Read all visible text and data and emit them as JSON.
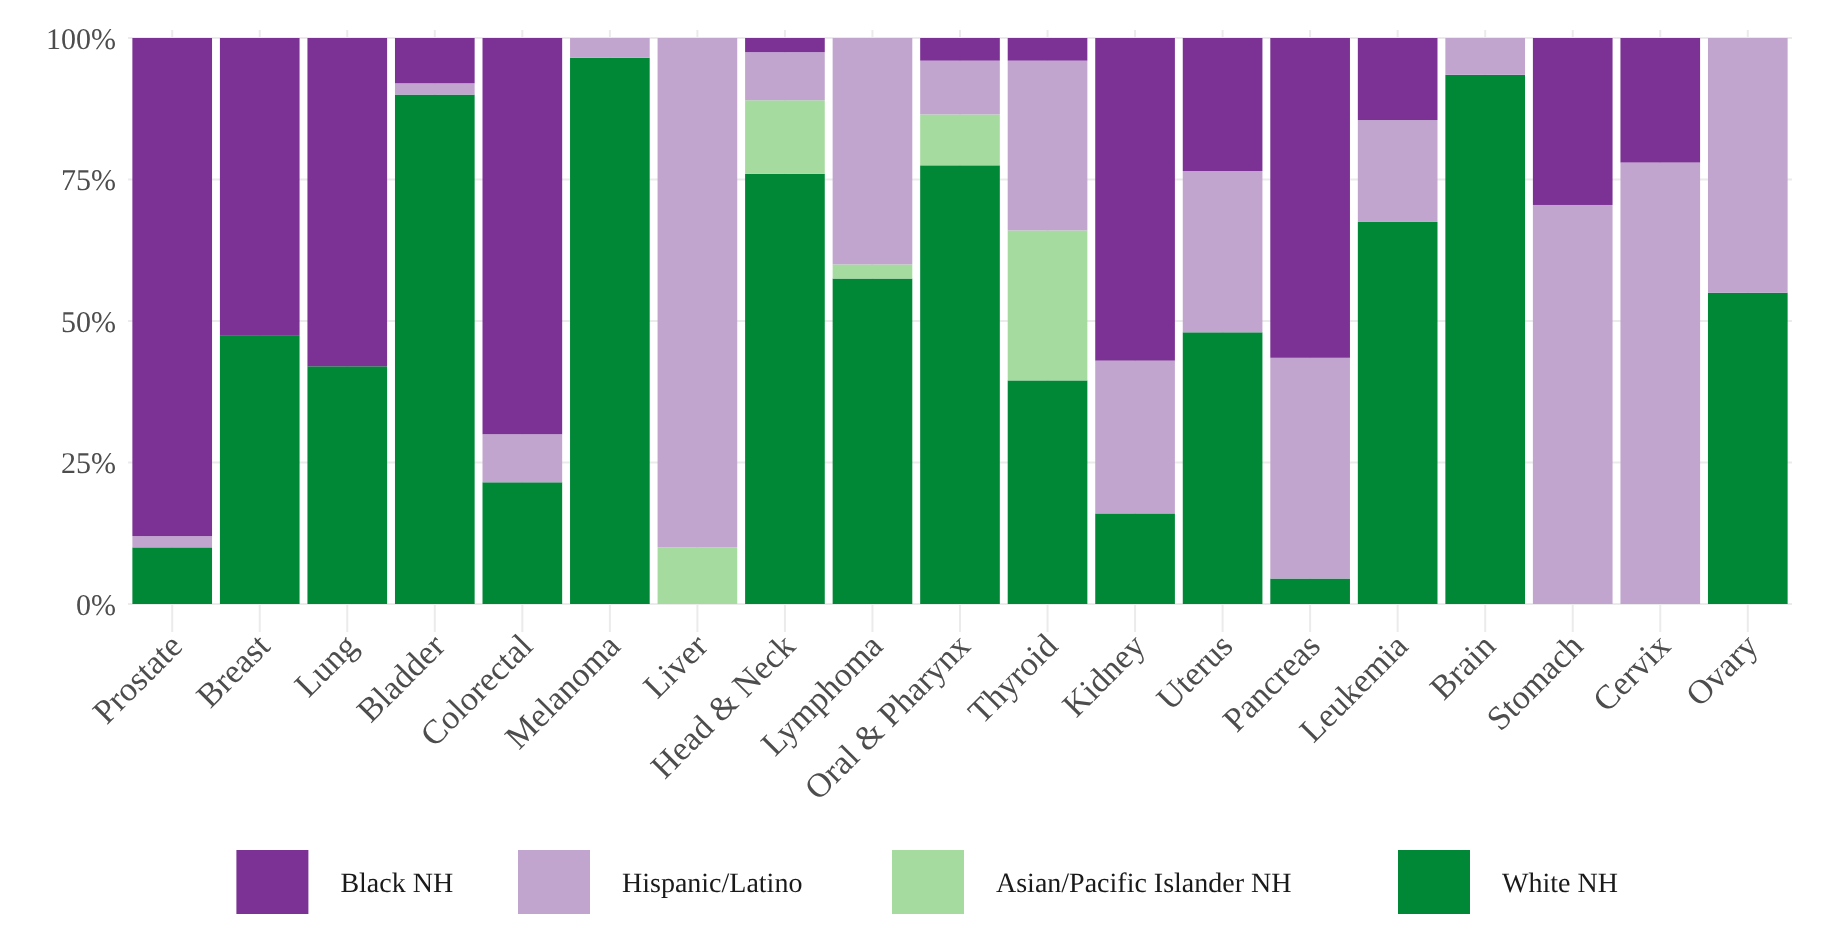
{
  "chart_data": {
    "type": "bar",
    "stacked": true,
    "categories": [
      "Prostate",
      "Breast",
      "Lung",
      "Bladder",
      "Colorectal",
      "Melanoma",
      "Liver",
      "Head & Neck",
      "Lymphoma",
      "Oral & Pharynx",
      "Thyroid",
      "Kidney",
      "Uterus",
      "Pancreas",
      "Leukemia",
      "Brain",
      "Stomach",
      "Cervix",
      "Ovary"
    ],
    "series": [
      {
        "name": "White NH",
        "color": "#008837",
        "values": [
          10,
          47.5,
          42,
          90,
          21.5,
          96.5,
          0,
          76,
          57.5,
          77.5,
          39.5,
          16,
          48,
          4.5,
          67.5,
          93.5,
          0,
          0,
          55
        ]
      },
      {
        "name": "Asian/Pacific Islander NH",
        "color": "#a6dba0",
        "values": [
          0,
          0,
          0,
          0,
          0,
          0,
          10,
          13,
          2.5,
          9,
          26.5,
          0,
          0,
          0,
          0,
          0,
          0,
          0,
          0
        ]
      },
      {
        "name": "Hispanic/Latino",
        "color": "#c2a5cf",
        "values": [
          2,
          0,
          0,
          2,
          8.5,
          3.5,
          90,
          8.5,
          40,
          9.5,
          30,
          27,
          28.5,
          39,
          18,
          6.5,
          70.5,
          78,
          45
        ]
      },
      {
        "name": "Black NH",
        "color": "#7b3294",
        "values": [
          88,
          52.5,
          58,
          8,
          70,
          0,
          0,
          2.5,
          0,
          4,
          4,
          57,
          23.5,
          56.5,
          14.5,
          0,
          29.5,
          22,
          0
        ]
      }
    ],
    "ylim": [
      0,
      100
    ],
    "yticks": [
      {
        "value": 0,
        "label": "0%"
      },
      {
        "value": 25,
        "label": "25%"
      },
      {
        "value": 50,
        "label": "50%"
      },
      {
        "value": 75,
        "label": "75%"
      },
      {
        "value": 100,
        "label": "100%"
      }
    ],
    "grid": true,
    "legend": "bottom"
  }
}
